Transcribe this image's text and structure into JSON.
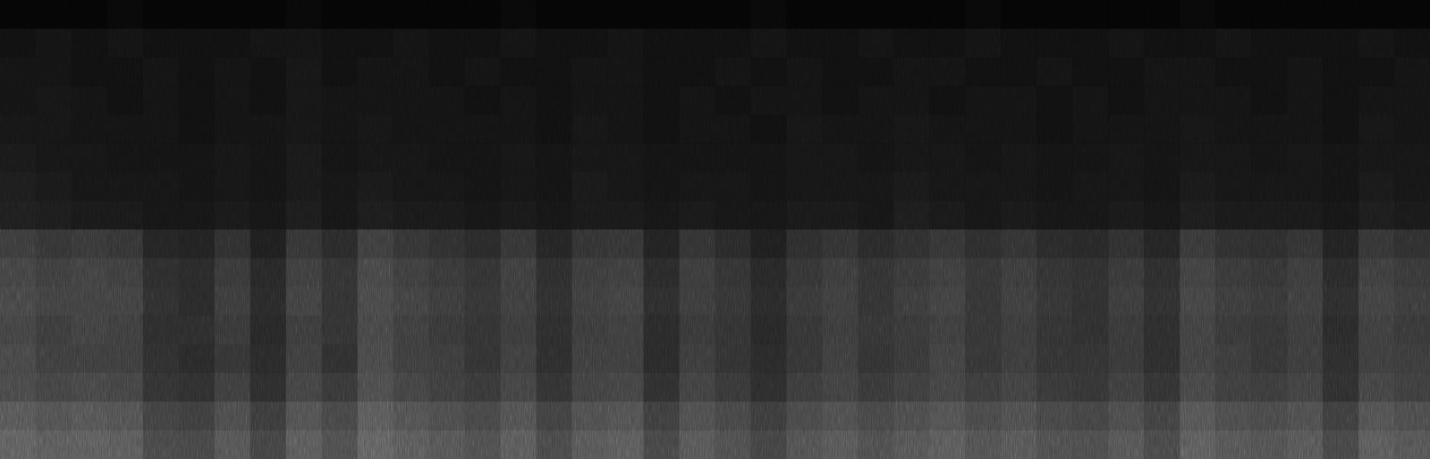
{
  "chart_data": {
    "type": "heatmap",
    "tick_labels": false,
    "color": "gray",
    "color_range": [
      0,
      100
    ],
    "cells": [
      [
        2,
        2,
        2,
        3,
        2,
        2,
        2,
        2,
        3,
        2,
        2,
        2,
        2,
        2,
        3,
        2,
        2,
        2,
        2,
        2,
        2,
        3,
        2,
        2,
        2,
        2,
        2,
        3,
        2,
        2,
        2,
        2,
        2,
        3,
        2,
        2,
        2,
        2,
        2,
        2
      ],
      [
        6,
        7,
        6,
        7,
        6,
        6,
        6,
        7,
        7,
        6,
        6,
        7,
        6,
        6,
        7,
        6,
        6,
        7,
        6,
        6,
        6,
        7,
        6,
        6,
        7,
        6,
        6,
        7,
        6,
        6,
        6,
        7,
        6,
        6,
        7,
        6,
        6,
        6,
        7,
        6
      ],
      [
        7,
        7,
        6,
        6,
        7,
        6,
        7,
        6,
        8,
        6,
        7,
        7,
        6,
        7,
        6,
        6,
        7,
        7,
        6,
        6,
        7,
        6,
        7,
        6,
        6,
        7,
        7,
        6,
        6,
        7,
        6,
        6,
        7,
        7,
        6,
        6,
        7,
        6,
        6,
        7
      ],
      [
        7,
        8,
        7,
        6,
        7,
        6,
        7,
        6,
        8,
        7,
        7,
        7,
        7,
        6,
        7,
        6,
        7,
        7,
        6,
        7,
        6,
        7,
        7,
        6,
        7,
        7,
        6,
        7,
        7,
        6,
        7,
        6,
        7,
        7,
        7,
        6,
        7,
        6,
        7,
        7
      ],
      [
        8,
        8,
        7,
        7,
        7,
        6,
        7,
        7,
        8,
        7,
        8,
        7,
        7,
        7,
        7,
        6,
        8,
        7,
        6,
        7,
        7,
        6,
        8,
        7,
        7,
        8,
        7,
        7,
        7,
        6,
        7,
        7,
        7,
        8,
        7,
        7,
        7,
        6,
        8,
        7
      ],
      [
        9,
        8,
        8,
        7,
        7,
        7,
        8,
        7,
        9,
        7,
        8,
        8,
        7,
        7,
        8,
        7,
        8,
        8,
        7,
        7,
        7,
        7,
        8,
        8,
        7,
        8,
        8,
        7,
        8,
        7,
        7,
        8,
        7,
        8,
        8,
        7,
        8,
        7,
        8,
        8
      ],
      [
        10,
        9,
        8,
        8,
        8,
        7,
        8,
        7,
        9,
        8,
        9,
        8,
        8,
        7,
        8,
        7,
        9,
        8,
        7,
        8,
        8,
        7,
        8,
        8,
        8,
        9,
        8,
        8,
        8,
        7,
        8,
        8,
        7,
        9,
        8,
        8,
        8,
        7,
        9,
        8
      ],
      [
        11,
        10,
        9,
        9,
        8,
        8,
        9,
        8,
        10,
        8,
        10,
        9,
        9,
        8,
        9,
        8,
        9,
        9,
        8,
        9,
        8,
        8,
        9,
        9,
        8,
        10,
        9,
        8,
        9,
        8,
        8,
        9,
        8,
        10,
        9,
        9,
        9,
        8,
        10,
        9
      ],
      [
        21,
        19,
        20,
        19,
        13,
        12,
        17,
        11,
        19,
        15,
        22,
        19,
        17,
        15,
        19,
        13,
        18,
        19,
        12,
        18,
        15,
        11,
        16,
        18,
        15,
        17,
        19,
        16,
        18,
        15,
        14,
        17,
        13,
        20,
        17,
        16,
        18,
        12,
        19,
        17
      ],
      [
        24,
        22,
        23,
        22,
        16,
        15,
        20,
        14,
        22,
        18,
        25,
        22,
        20,
        18,
        22,
        16,
        21,
        22,
        15,
        21,
        18,
        14,
        19,
        21,
        18,
        20,
        22,
        19,
        21,
        18,
        17,
        20,
        16,
        23,
        20,
        19,
        21,
        15,
        22,
        20
      ],
      [
        25,
        23,
        23,
        23,
        17,
        15,
        21,
        15,
        23,
        18,
        26,
        23,
        21,
        19,
        22,
        17,
        22,
        23,
        16,
        21,
        19,
        15,
        20,
        22,
        18,
        21,
        23,
        19,
        22,
        19,
        17,
        21,
        17,
        24,
        21,
        20,
        22,
        16,
        23,
        21
      ],
      [
        24,
        21,
        23,
        22,
        16,
        16,
        20,
        14,
        21,
        18,
        25,
        22,
        20,
        18,
        21,
        16,
        21,
        22,
        15,
        20,
        18,
        14,
        19,
        21,
        19,
        20,
        22,
        19,
        21,
        18,
        17,
        20,
        16,
        23,
        20,
        19,
        21,
        15,
        22,
        20
      ],
      [
        25,
        22,
        22,
        22,
        17,
        15,
        19,
        15,
        22,
        17,
        26,
        22,
        21,
        18,
        22,
        16,
        22,
        22,
        15,
        21,
        18,
        15,
        19,
        22,
        18,
        20,
        23,
        19,
        21,
        18,
        18,
        20,
        16,
        23,
        21,
        19,
        21,
        16,
        22,
        21
      ],
      [
        26,
        24,
        25,
        24,
        18,
        17,
        22,
        16,
        24,
        20,
        27,
        24,
        22,
        20,
        24,
        18,
        23,
        24,
        17,
        23,
        20,
        16,
        21,
        23,
        20,
        22,
        24,
        21,
        23,
        20,
        19,
        22,
        18,
        25,
        22,
        21,
        23,
        17,
        24,
        22
      ],
      [
        31,
        29,
        30,
        29,
        23,
        22,
        27,
        21,
        29,
        25,
        32,
        29,
        27,
        25,
        29,
        23,
        28,
        29,
        22,
        28,
        25,
        21,
        26,
        28,
        25,
        27,
        29,
        26,
        28,
        25,
        24,
        27,
        23,
        30,
        27,
        26,
        28,
        22,
        29,
        27
      ],
      [
        34,
        32,
        33,
        32,
        26,
        25,
        30,
        24,
        32,
        28,
        35,
        32,
        30,
        28,
        32,
        26,
        31,
        32,
        25,
        31,
        28,
        24,
        29,
        31,
        28,
        30,
        32,
        29,
        31,
        28,
        27,
        30,
        26,
        33,
        30,
        29,
        31,
        25,
        32,
        30
      ]
    ]
  }
}
